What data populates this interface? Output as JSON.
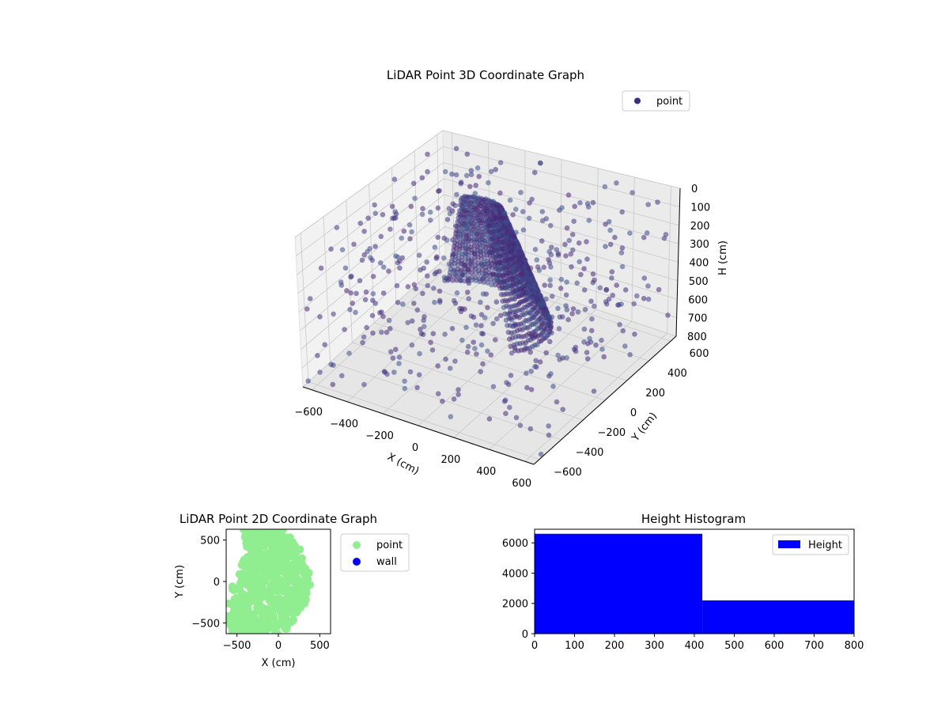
{
  "chart_data": [
    {
      "type": "scatter",
      "title": "LiDAR Point 3D Coordinate Graph",
      "xlabel": "X (cm)",
      "ylabel": "Y (cm)",
      "zlabel": "H (cm)",
      "legend": [
        "point"
      ],
      "legend_position": "top-right",
      "x_ticks": [
        -600,
        -400,
        -200,
        0,
        200,
        400,
        600
      ],
      "y_ticks": [
        -600,
        -400,
        -200,
        0,
        200,
        400,
        600
      ],
      "z_ticks": [
        0,
        100,
        200,
        300,
        400,
        500,
        600,
        700,
        800
      ],
      "xlim": [
        -650,
        650
      ],
      "ylim": [
        -650,
        650
      ],
      "zlim": [
        0,
        800
      ],
      "z_inverted": true,
      "grid": true,
      "colormap": "viridis",
      "series": [
        {
          "name": "point",
          "color": "#3b2e7e"
        }
      ]
    },
    {
      "type": "scatter",
      "title": "LiDAR Point 2D Coordinate Graph",
      "xlabel": "X (cm)",
      "ylabel": "Y (cm)",
      "x_ticks": [
        -500,
        0,
        500
      ],
      "y_ticks": [
        -500,
        0,
        500
      ],
      "xlim": [
        -630,
        630
      ],
      "ylim": [
        -630,
        630
      ],
      "legend_position": "outside-right",
      "series": [
        {
          "name": "point",
          "color": "#90ee90"
        },
        {
          "name": "wall",
          "color": "#0000ff",
          "points": []
        }
      ]
    },
    {
      "type": "bar",
      "title": "Height Histogram",
      "legend": [
        "Height"
      ],
      "legend_position": "top-right",
      "color": "#0000ff",
      "x_ticks": [
        0,
        100,
        200,
        300,
        400,
        500,
        600,
        700,
        800
      ],
      "y_ticks": [
        0,
        2000,
        4000,
        6000
      ],
      "xlim": [
        0,
        800
      ],
      "ylim": [
        0,
        6900
      ],
      "bins": [
        {
          "start": 0,
          "end": 420,
          "count": 6600
        },
        {
          "start": 420,
          "end": 800,
          "count": 2200
        }
      ]
    }
  ]
}
